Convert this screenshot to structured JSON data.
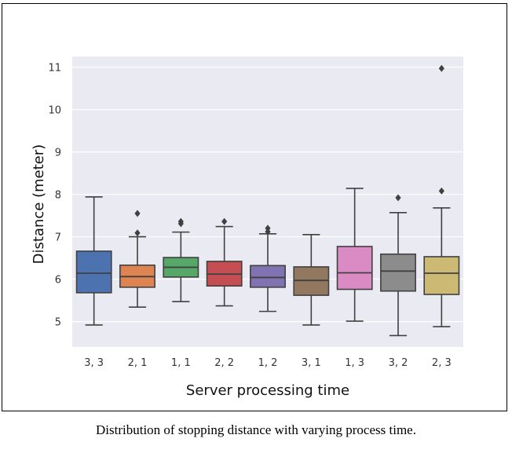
{
  "caption": "Distribution of stopping distance with varying process time.",
  "chart_data": {
    "type": "box",
    "xlabel": "Server processing time",
    "ylabel": "Distance (meter)",
    "ylim": [
      4.4,
      11.25
    ],
    "yticks": [
      5,
      6,
      7,
      8,
      9,
      10,
      11
    ],
    "grid": true,
    "categories": [
      "3, 3",
      "2, 1",
      "1, 1",
      "2, 2",
      "1, 2",
      "3, 1",
      "1, 3",
      "3, 2",
      "2, 3"
    ],
    "colors": [
      "#4c72b0",
      "#dd8452",
      "#55a868",
      "#c44e52",
      "#8172b2",
      "#937860",
      "#da8bc3",
      "#8c8c8c",
      "#ccb974"
    ],
    "boxes": [
      {
        "whislo": 4.92,
        "q1": 5.68,
        "median": 6.14,
        "q3": 6.66,
        "whishi": 7.94,
        "fliers": []
      },
      {
        "whislo": 5.34,
        "q1": 5.81,
        "median": 6.06,
        "q3": 6.33,
        "whishi": 7.0,
        "fliers": [
          7.09,
          7.55
        ]
      },
      {
        "whislo": 5.47,
        "q1": 6.05,
        "median": 6.28,
        "q3": 6.51,
        "whishi": 7.11,
        "fliers": [
          7.31,
          7.36
        ]
      },
      {
        "whislo": 5.37,
        "q1": 5.84,
        "median": 6.12,
        "q3": 6.42,
        "whishi": 7.24,
        "fliers": [
          7.36
        ]
      },
      {
        "whislo": 5.24,
        "q1": 5.81,
        "median": 6.04,
        "q3": 6.32,
        "whishi": 7.07,
        "fliers": [
          7.12,
          7.2
        ]
      },
      {
        "whislo": 4.92,
        "q1": 5.62,
        "median": 5.97,
        "q3": 6.29,
        "whishi": 7.05,
        "fliers": []
      },
      {
        "whislo": 5.01,
        "q1": 5.76,
        "median": 6.15,
        "q3": 6.77,
        "whishi": 8.14,
        "fliers": []
      },
      {
        "whislo": 4.67,
        "q1": 5.72,
        "median": 6.19,
        "q3": 6.59,
        "whishi": 7.57,
        "fliers": [
          7.92
        ]
      },
      {
        "whislo": 4.88,
        "q1": 5.64,
        "median": 6.14,
        "q3": 6.53,
        "whishi": 7.68,
        "fliers": [
          8.08,
          10.97
        ]
      }
    ]
  }
}
